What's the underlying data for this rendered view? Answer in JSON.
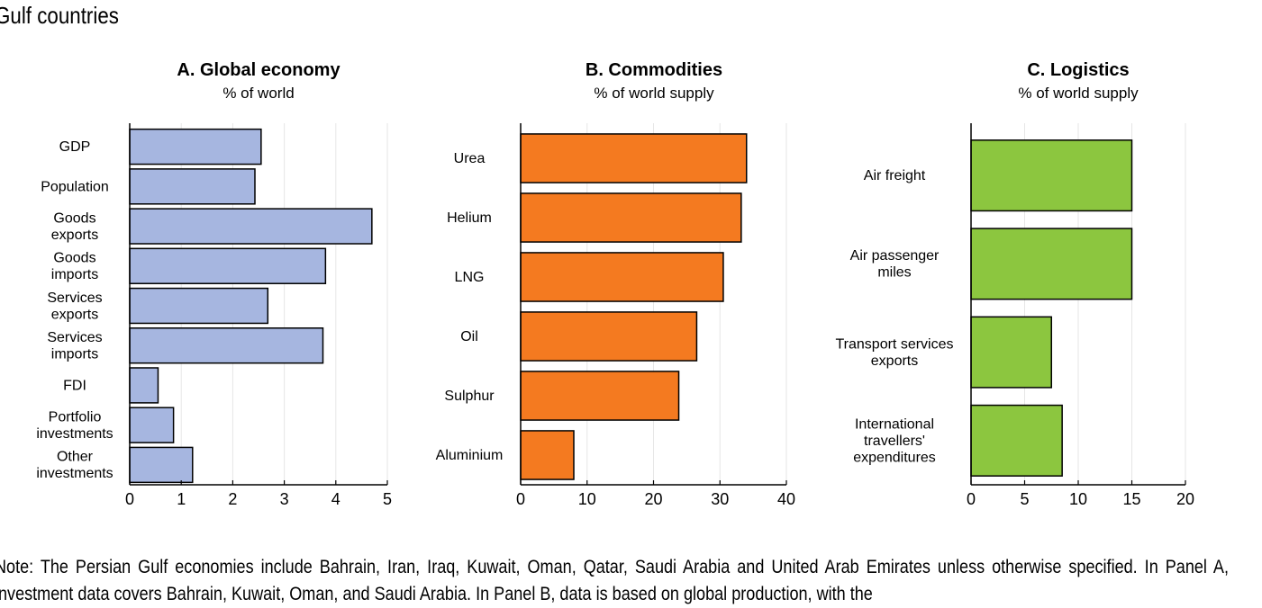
{
  "page": {
    "title": "Gulf countries",
    "note": "Note: The Persian Gulf economies include Bahrain, Iran, Iraq, Kuwait, Oman, Qatar, Saudi Arabia and United Arab Emirates unless otherwise specified. In Panel A, investment data covers Bahrain, Kuwait, Oman, and Saudi Arabia. In Panel B, data is based on global production, with the"
  },
  "colors": {
    "panelA": "#a6b6e0",
    "panelB": "#f47a20",
    "panelC": "#8cc63f",
    "grid": "#e6e6e6"
  },
  "chart_data": [
    {
      "type": "bar",
      "orientation": "horizontal",
      "title": "A. Global economy",
      "subtitle": "% of world",
      "categories": [
        "GDP",
        "Population",
        "Goods\nexports",
        "Goods\nimports",
        "Services\nexports",
        "Services\nimports",
        "FDI",
        "Portfolio\ninvestments",
        "Other\ninvestments"
      ],
      "values": [
        2.55,
        2.43,
        4.7,
        3.8,
        2.68,
        3.75,
        0.55,
        0.85,
        1.22
      ],
      "xlim": [
        0,
        5
      ],
      "xticks": [
        "0",
        "1",
        "2",
        "3",
        "4",
        "5"
      ],
      "grid": true
    },
    {
      "type": "bar",
      "orientation": "horizontal",
      "title": "B. Commodities",
      "subtitle": "% of world supply",
      "categories": [
        "Urea",
        "Helium",
        "LNG",
        "Oil",
        "Sulphur",
        "Aluminium"
      ],
      "values": [
        34,
        33.2,
        30.5,
        26.5,
        23.8,
        8
      ],
      "xlim": [
        0,
        40
      ],
      "xticks": [
        "0",
        "10",
        "20",
        "30",
        "40"
      ],
      "grid": true
    },
    {
      "type": "bar",
      "orientation": "horizontal",
      "title": "C. Logistics",
      "subtitle": "% of world supply",
      "categories": [
        "Air freight",
        "Air passenger\nmiles",
        "Transport services\nexports",
        "International\ntravellers'\nexpenditures"
      ],
      "values": [
        15,
        15,
        7.5,
        8.5
      ],
      "xlim": [
        0,
        20
      ],
      "xticks": [
        "0",
        "5",
        "10",
        "15",
        "20"
      ],
      "grid": true
    }
  ]
}
